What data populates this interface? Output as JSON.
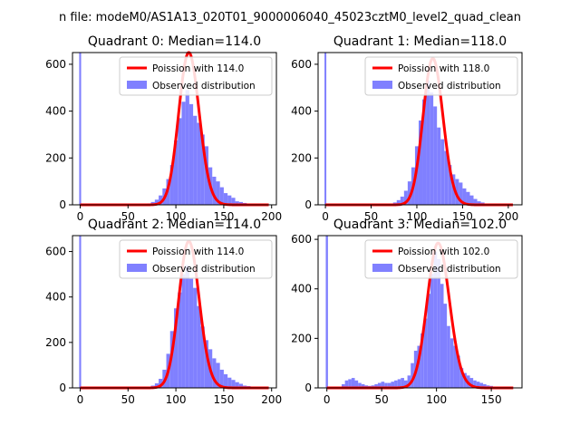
{
  "suptitle": "n file: modeM0/AS1A13_020T01_9000006040_45023cztM0_level2_quad_clean",
  "colors": {
    "hist": "#8080ff",
    "poisson": "#ff0000"
  },
  "chart_data": [
    {
      "type": "bar",
      "title": "Quadrant 0: Median=114.0",
      "legend_position": "top-right",
      "legend": {
        "fit": "Poission with 114.0",
        "hist": "Observed distribution"
      },
      "xlim": [
        -8,
        205
      ],
      "ylim": [
        0,
        650
      ],
      "xticks": [
        0,
        50,
        100,
        150,
        200
      ],
      "yticks": [
        0,
        200,
        400,
        600
      ],
      "bin_width": 4,
      "zero_bin": {
        "x": 0,
        "value": 650
      },
      "bins": [
        [
          60,
          3
        ],
        [
          64,
          4
        ],
        [
          68,
          5
        ],
        [
          72,
          6
        ],
        [
          76,
          12
        ],
        [
          80,
          22
        ],
        [
          84,
          40
        ],
        [
          88,
          70
        ],
        [
          92,
          110
        ],
        [
          96,
          170
        ],
        [
          100,
          275
        ],
        [
          104,
          370
        ],
        [
          108,
          440
        ],
        [
          112,
          490
        ],
        [
          116,
          430
        ],
        [
          120,
          380
        ],
        [
          124,
          350
        ],
        [
          128,
          300
        ],
        [
          132,
          250
        ],
        [
          136,
          160
        ],
        [
          140,
          120
        ],
        [
          144,
          100
        ],
        [
          148,
          75
        ],
        [
          152,
          50
        ],
        [
          156,
          40
        ],
        [
          160,
          30
        ],
        [
          164,
          15
        ],
        [
          168,
          12
        ],
        [
          172,
          8
        ],
        [
          176,
          5
        ],
        [
          180,
          5
        ],
        [
          184,
          3
        ],
        [
          188,
          2
        ],
        [
          192,
          2
        ]
      ],
      "fit": {
        "lambda": 114,
        "amplitude": 650,
        "x_range": [
          0,
          197
        ]
      }
    },
    {
      "type": "bar",
      "title": "Quadrant 1: Median=118.0",
      "legend_position": "top-right",
      "legend": {
        "fit": "Poission with 118.0",
        "hist": "Observed distribution"
      },
      "xlim": [
        -8,
        215
      ],
      "ylim": [
        0,
        650
      ],
      "xticks": [
        0,
        50,
        100,
        150,
        200
      ],
      "yticks": [
        0,
        200,
        400,
        600
      ],
      "bin_width": 4,
      "zero_bin": {
        "x": 0,
        "value": 650
      },
      "bins": [
        [
          68,
          3
        ],
        [
          72,
          5
        ],
        [
          76,
          10
        ],
        [
          80,
          20
        ],
        [
          84,
          35
        ],
        [
          88,
          60
        ],
        [
          92,
          100
        ],
        [
          96,
          160
        ],
        [
          100,
          250
        ],
        [
          104,
          360
        ],
        [
          108,
          450
        ],
        [
          112,
          530
        ],
        [
          116,
          480
        ],
        [
          120,
          420
        ],
        [
          124,
          330
        ],
        [
          128,
          280
        ],
        [
          132,
          230
        ],
        [
          136,
          170
        ],
        [
          140,
          130
        ],
        [
          144,
          110
        ],
        [
          148,
          95
        ],
        [
          152,
          70
        ],
        [
          156,
          55
        ],
        [
          160,
          40
        ],
        [
          164,
          25
        ],
        [
          168,
          15
        ],
        [
          172,
          10
        ],
        [
          176,
          5
        ],
        [
          180,
          4
        ],
        [
          184,
          3
        ],
        [
          188,
          2
        ]
      ],
      "fit": {
        "lambda": 118,
        "amplitude": 625,
        "x_range": [
          0,
          205
        ]
      }
    },
    {
      "type": "bar",
      "title": "Quadrant 2: Median=114.0",
      "legend_position": "top-right",
      "legend": {
        "fit": "Poission with 114.0",
        "hist": "Observed distribution"
      },
      "xlim": [
        -8,
        205
      ],
      "ylim": [
        0,
        670
      ],
      "xticks": [
        0,
        50,
        100,
        150,
        200
      ],
      "yticks": [
        0,
        200,
        400,
        600
      ],
      "bin_width": 4,
      "zero_bin": {
        "x": 0,
        "value": 670
      },
      "bins": [
        [
          68,
          3
        ],
        [
          72,
          5
        ],
        [
          76,
          10
        ],
        [
          80,
          20
        ],
        [
          84,
          40
        ],
        [
          88,
          80
        ],
        [
          92,
          150
        ],
        [
          96,
          250
        ],
        [
          100,
          350
        ],
        [
          104,
          420
        ],
        [
          108,
          500
        ],
        [
          112,
          540
        ],
        [
          116,
          480
        ],
        [
          120,
          440
        ],
        [
          124,
          360
        ],
        [
          128,
          270
        ],
        [
          132,
          210
        ],
        [
          136,
          170
        ],
        [
          140,
          130
        ],
        [
          144,
          110
        ],
        [
          148,
          80
        ],
        [
          152,
          60
        ],
        [
          156,
          45
        ],
        [
          160,
          35
        ],
        [
          164,
          25
        ],
        [
          168,
          18
        ],
        [
          172,
          10
        ],
        [
          176,
          8
        ],
        [
          180,
          5
        ],
        [
          184,
          4
        ],
        [
          188,
          3
        ],
        [
          192,
          2
        ]
      ],
      "fit": {
        "lambda": 114,
        "amplitude": 645,
        "x_range": [
          0,
          197
        ]
      }
    },
    {
      "type": "bar",
      "title": "Quadrant 3: Median=102.0",
      "legend_position": "top-right",
      "legend": {
        "fit": "Poission with 102.0",
        "hist": "Observed distribution"
      },
      "xlim": [
        -8,
        178
      ],
      "ylim": [
        0,
        615
      ],
      "xticks": [
        0,
        50,
        100,
        150
      ],
      "yticks": [
        0,
        200,
        400,
        600
      ],
      "bin_width": 3,
      "zero_bin": {
        "x": 0,
        "value": 615
      },
      "bins": [
        [
          12,
          5
        ],
        [
          15,
          15
        ],
        [
          18,
          30
        ],
        [
          21,
          35
        ],
        [
          24,
          40
        ],
        [
          27,
          30
        ],
        [
          30,
          20
        ],
        [
          33,
          15
        ],
        [
          36,
          10
        ],
        [
          39,
          8
        ],
        [
          42,
          10
        ],
        [
          45,
          15
        ],
        [
          48,
          20
        ],
        [
          51,
          25
        ],
        [
          54,
          20
        ],
        [
          57,
          20
        ],
        [
          60,
          25
        ],
        [
          63,
          30
        ],
        [
          66,
          35
        ],
        [
          69,
          40
        ],
        [
          72,
          30
        ],
        [
          75,
          50
        ],
        [
          78,
          100
        ],
        [
          81,
          150
        ],
        [
          84,
          170
        ],
        [
          87,
          220
        ],
        [
          90,
          280
        ],
        [
          93,
          380
        ],
        [
          96,
          460
        ],
        [
          99,
          550
        ],
        [
          102,
          520
        ],
        [
          105,
          420
        ],
        [
          108,
          340
        ],
        [
          111,
          250
        ],
        [
          114,
          200
        ],
        [
          117,
          170
        ],
        [
          120,
          130
        ],
        [
          123,
          80
        ],
        [
          126,
          60
        ],
        [
          129,
          50
        ],
        [
          132,
          40
        ],
        [
          135,
          30
        ],
        [
          138,
          25
        ],
        [
          141,
          20
        ],
        [
          144,
          15
        ],
        [
          147,
          10
        ],
        [
          150,
          8
        ],
        [
          153,
          5
        ],
        [
          156,
          4
        ],
        [
          159,
          3
        ],
        [
          162,
          2
        ],
        [
          165,
          1
        ]
      ],
      "fit": {
        "lambda": 102,
        "amplitude": 585,
        "x_range": [
          0,
          170
        ]
      }
    }
  ]
}
